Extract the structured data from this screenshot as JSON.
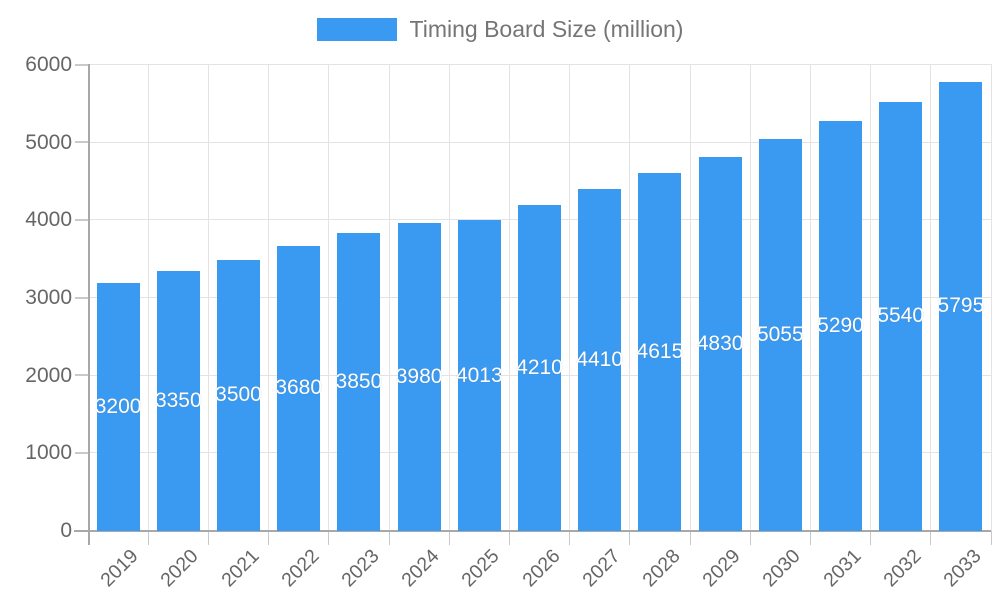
{
  "legend": {
    "label": "Timing Board Size (million)"
  },
  "colors": {
    "bar": "#3a99f0",
    "grid": "#e3e3e3",
    "tick": "#c9c9c9",
    "axis_line": "#a8a8a8",
    "axis_text": "#666666",
    "legend_text": "#757575",
    "value_label": "#ffffff"
  },
  "chart_data": {
    "type": "bar",
    "title": "Timing Board Size (million)",
    "categories": [
      "2019",
      "2020",
      "2021",
      "2022",
      "2023",
      "2024",
      "2025",
      "2026",
      "2027",
      "2028",
      "2029",
      "2030",
      "2031",
      "2032",
      "2033"
    ],
    "series": [
      {
        "name": "Timing Board Size (million)",
        "values": [
          3200,
          3350,
          3500,
          3680,
          3850,
          3980,
          4013,
          4210,
          4410,
          4615,
          4830,
          5055,
          5290,
          5540,
          5795
        ]
      }
    ],
    "xlabel": "",
    "ylabel": "",
    "ylim": [
      0,
      6000
    ],
    "y_ticks": [
      0,
      1000,
      2000,
      3000,
      4000,
      5000,
      6000
    ],
    "grid": true,
    "legend_position": "top",
    "value_labels": "inside-center",
    "x_label_rotation": -45
  }
}
